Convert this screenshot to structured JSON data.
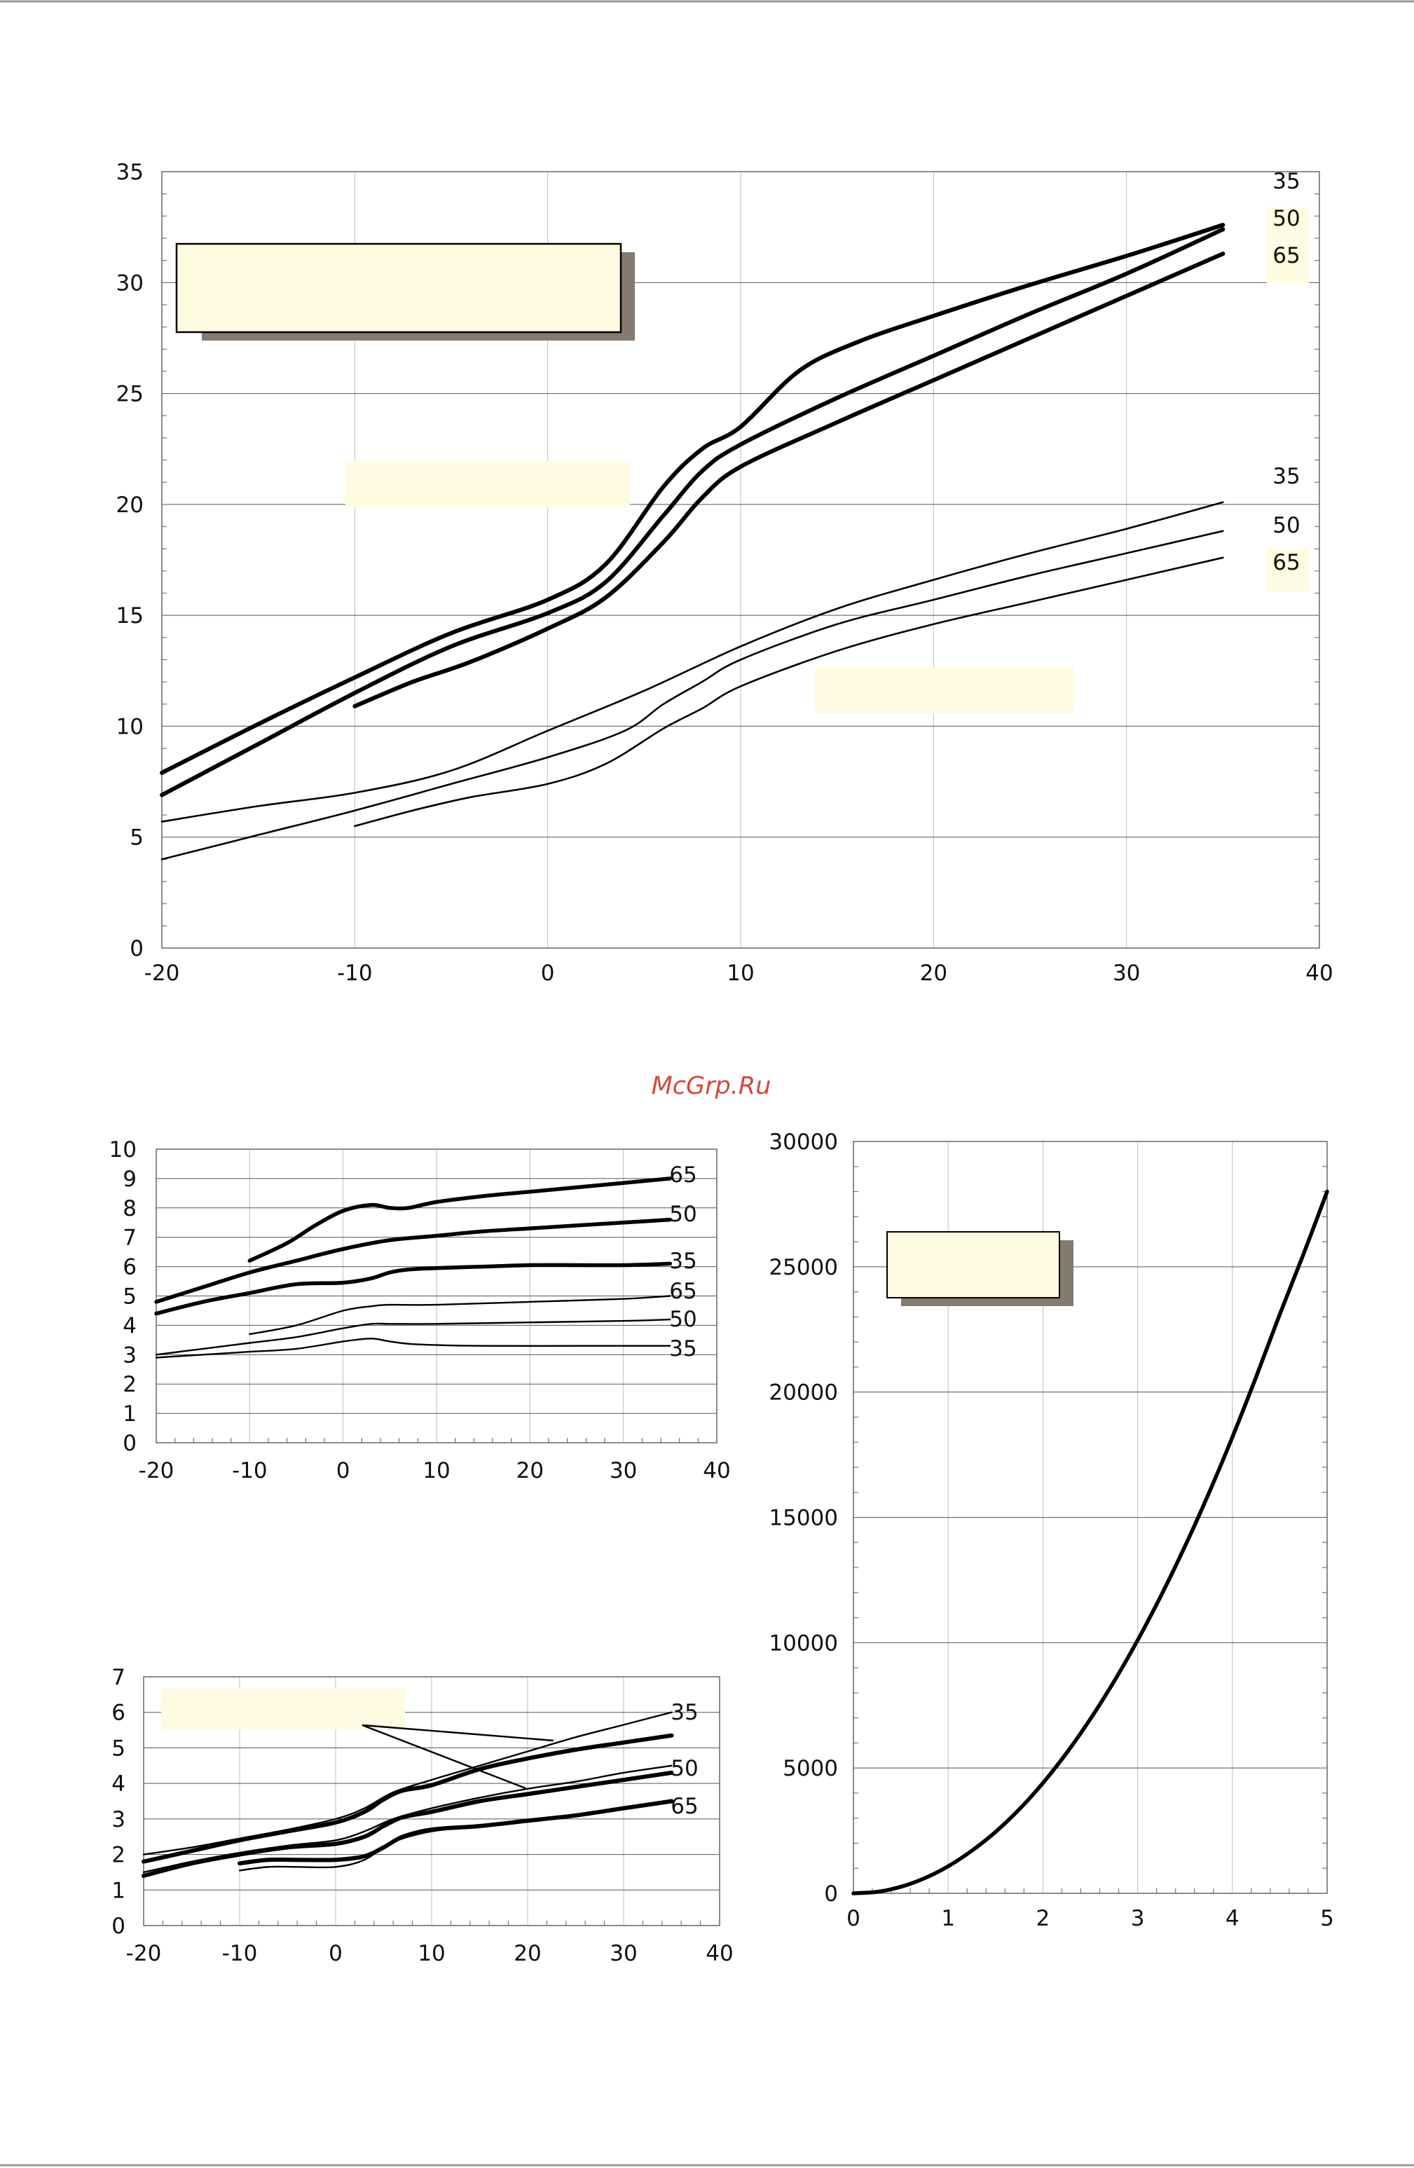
{
  "watermark": "McGrp.Ru",
  "colors": {
    "line": "#000000",
    "highlight": "#fffbe0",
    "shadow": "#847a6e",
    "watermark": "#d24a3a"
  },
  "chart_data": [
    {
      "type": "line",
      "title": "",
      "xlim": [
        -20,
        40
      ],
      "ylim": [
        0,
        35
      ],
      "x_ticks": [
        "-20",
        "-10",
        "0",
        "10",
        "20",
        "30",
        "40"
      ],
      "y_ticks": [
        "0",
        "5",
        "10",
        "15",
        "20",
        "25",
        "30",
        "35"
      ],
      "grid": true,
      "series": [
        {
          "name": "35",
          "weight": "thick",
          "x": [
            -20,
            -15,
            -10,
            -5,
            0,
            3,
            6,
            8,
            10,
            13,
            16,
            20,
            25,
            30,
            35
          ],
          "y": [
            7.9,
            10.1,
            12.2,
            14.2,
            15.7,
            17.3,
            20.8,
            22.5,
            23.5,
            26.0,
            27.3,
            28.5,
            29.9,
            31.2,
            32.6
          ]
        },
        {
          "name": "50",
          "weight": "thick",
          "x": [
            -20,
            -15,
            -10,
            -5,
            0,
            3,
            6,
            8,
            10,
            15,
            20,
            25,
            30,
            35
          ],
          "y": [
            6.9,
            9.2,
            11.5,
            13.6,
            15.1,
            16.5,
            19.5,
            21.5,
            22.7,
            24.8,
            26.7,
            28.6,
            30.4,
            32.4
          ]
        },
        {
          "name": "65",
          "weight": "thick",
          "x": [
            -10,
            -7,
            -4,
            0,
            3,
            6,
            8,
            10,
            15,
            20,
            25,
            30,
            35
          ],
          "y": [
            10.9,
            12.0,
            12.9,
            14.4,
            15.8,
            18.3,
            20.3,
            21.7,
            23.7,
            25.6,
            27.5,
            29.4,
            31.3
          ]
        },
        {
          "name": "35",
          "weight": "thin",
          "x": [
            -20,
            -15,
            -10,
            -5,
            0,
            5,
            10,
            15,
            20,
            25,
            30,
            35
          ],
          "y": [
            5.7,
            6.4,
            7.0,
            8.0,
            9.8,
            11.6,
            13.6,
            15.3,
            16.6,
            17.8,
            18.9,
            20.1
          ]
        },
        {
          "name": "50",
          "weight": "thin",
          "x": [
            -20,
            -15,
            -10,
            -5,
            0,
            4,
            6,
            8,
            10,
            15,
            20,
            25,
            30,
            35
          ],
          "y": [
            4.0,
            5.1,
            6.2,
            7.4,
            8.6,
            9.8,
            11.0,
            12.0,
            13.0,
            14.6,
            15.7,
            16.8,
            17.8,
            18.8
          ]
        },
        {
          "name": "65",
          "weight": "thin",
          "x": [
            -10,
            -7,
            -4,
            0,
            3,
            6,
            8,
            10,
            15,
            20,
            25,
            30,
            35
          ],
          "y": [
            5.5,
            6.2,
            6.8,
            7.4,
            8.3,
            9.9,
            10.8,
            11.8,
            13.4,
            14.6,
            15.6,
            16.6,
            17.6
          ]
        }
      ],
      "line_labels": [
        "35",
        "50",
        "65",
        "35",
        "50",
        "65"
      ]
    },
    {
      "type": "line",
      "title": "",
      "xlim": [
        -20,
        40
      ],
      "ylim": [
        0,
        10
      ],
      "x_ticks": [
        "-20",
        "-10",
        "0",
        "10",
        "20",
        "30",
        "40"
      ],
      "y_ticks": [
        "0",
        "1",
        "2",
        "3",
        "4",
        "5",
        "6",
        "7",
        "8",
        "9",
        "10"
      ],
      "grid": true,
      "series": [
        {
          "name": "65",
          "weight": "thick",
          "x": [
            -10,
            -6,
            -3,
            0,
            3,
            5,
            7,
            10,
            15,
            20,
            25,
            30,
            35
          ],
          "y": [
            6.2,
            6.8,
            7.4,
            7.9,
            8.1,
            8.0,
            8.0,
            8.2,
            8.4,
            8.55,
            8.7,
            8.85,
            9.0
          ]
        },
        {
          "name": "50",
          "weight": "thick",
          "x": [
            -20,
            -15,
            -10,
            -5,
            0,
            5,
            10,
            15,
            20,
            25,
            30,
            35
          ],
          "y": [
            4.8,
            5.3,
            5.8,
            6.2,
            6.6,
            6.9,
            7.05,
            7.2,
            7.3,
            7.4,
            7.5,
            7.6
          ]
        },
        {
          "name": "35",
          "weight": "thick",
          "x": [
            -20,
            -15,
            -10,
            -5,
            0,
            3,
            5,
            7,
            10,
            15,
            20,
            25,
            30,
            35
          ],
          "y": [
            4.4,
            4.8,
            5.1,
            5.4,
            5.45,
            5.6,
            5.8,
            5.9,
            5.95,
            6.0,
            6.05,
            6.05,
            6.05,
            6.1
          ]
        },
        {
          "name": "65",
          "weight": "thin",
          "x": [
            -10,
            -5,
            0,
            3,
            5,
            10,
            20,
            30,
            35
          ],
          "y": [
            3.7,
            4.0,
            4.5,
            4.65,
            4.7,
            4.7,
            4.8,
            4.9,
            5.0
          ]
        },
        {
          "name": "50",
          "weight": "thin",
          "x": [
            -20,
            -15,
            -10,
            -5,
            0,
            3,
            5,
            10,
            20,
            30,
            35
          ],
          "y": [
            3.0,
            3.2,
            3.4,
            3.6,
            3.9,
            4.05,
            4.05,
            4.05,
            4.1,
            4.15,
            4.2
          ]
        },
        {
          "name": "35",
          "weight": "thin",
          "x": [
            -20,
            -15,
            -10,
            -5,
            0,
            3,
            5,
            8,
            15,
            25,
            35
          ],
          "y": [
            2.9,
            3.0,
            3.1,
            3.2,
            3.45,
            3.55,
            3.45,
            3.35,
            3.3,
            3.3,
            3.3
          ]
        }
      ],
      "line_labels": [
        "65",
        "50",
        "35",
        "65",
        "50",
        "35"
      ]
    },
    {
      "type": "line",
      "title": "",
      "xlim": [
        -20,
        40
      ],
      "ylim": [
        0,
        7
      ],
      "x_ticks": [
        "-20",
        "-10",
        "0",
        "10",
        "20",
        "30",
        "40"
      ],
      "y_ticks": [
        "0",
        "1",
        "2",
        "3",
        "4",
        "5",
        "6",
        "7"
      ],
      "grid": true,
      "series": [
        {
          "name": "35",
          "weight": "thick",
          "x": [
            -20,
            -15,
            -10,
            -5,
            0,
            3,
            5,
            7,
            10,
            15,
            20,
            25,
            30,
            35
          ],
          "y": [
            1.8,
            2.1,
            2.4,
            2.65,
            2.9,
            3.2,
            3.55,
            3.8,
            3.95,
            4.4,
            4.7,
            4.95,
            5.15,
            5.35
          ]
        },
        {
          "name": "50",
          "weight": "thick",
          "x": [
            -20,
            -15,
            -10,
            -5,
            0,
            3,
            5,
            7,
            10,
            15,
            20,
            25,
            30,
            35
          ],
          "y": [
            1.4,
            1.75,
            2.0,
            2.2,
            2.3,
            2.5,
            2.8,
            3.05,
            3.2,
            3.5,
            3.7,
            3.9,
            4.1,
            4.3
          ]
        },
        {
          "name": "65",
          "weight": "thick",
          "x": [
            -10,
            -7,
            -4,
            0,
            3,
            5,
            7,
            10,
            15,
            20,
            25,
            30,
            35
          ],
          "y": [
            1.75,
            1.85,
            1.85,
            1.85,
            1.95,
            2.2,
            2.5,
            2.7,
            2.8,
            2.95,
            3.1,
            3.3,
            3.5
          ]
        },
        {
          "name": "35",
          "weight": "thin",
          "x": [
            -20,
            -15,
            -10,
            -5,
            0,
            3,
            6,
            10,
            15,
            20,
            25,
            30,
            35
          ],
          "y": [
            2.0,
            2.2,
            2.45,
            2.7,
            3.0,
            3.3,
            3.75,
            4.1,
            4.5,
            4.9,
            5.3,
            5.65,
            6.0
          ]
        },
        {
          "name": "50",
          "weight": "thin",
          "x": [
            -20,
            -15,
            -10,
            -5,
            0,
            3,
            6,
            10,
            15,
            20,
            25,
            30,
            35
          ],
          "y": [
            1.5,
            1.8,
            2.05,
            2.25,
            2.4,
            2.65,
            3.0,
            3.3,
            3.6,
            3.85,
            4.05,
            4.3,
            4.5
          ]
        },
        {
          "name": "65",
          "weight": "thin",
          "x": [
            -10,
            -7,
            -4,
            0,
            3,
            6,
            10,
            15,
            20,
            25,
            30,
            35
          ],
          "y": [
            1.55,
            1.65,
            1.65,
            1.65,
            1.85,
            2.35,
            2.65,
            2.8,
            2.95,
            3.1,
            3.3,
            3.5
          ]
        }
      ],
      "line_labels": [
        "35",
        "50",
        "65"
      ]
    },
    {
      "type": "line",
      "title": "",
      "xlim": [
        0,
        5
      ],
      "ylim": [
        0,
        30000
      ],
      "x_ticks": [
        "0",
        "1",
        "2",
        "3",
        "4",
        "5"
      ],
      "y_ticks": [
        "0",
        "5000",
        "10000",
        "15000",
        "20000",
        "25000",
        "30000"
      ],
      "grid": true,
      "series": [
        {
          "name": "",
          "weight": "thick",
          "x": [
            0,
            0.25,
            0.5,
            0.75,
            1,
            1.25,
            1.5,
            1.75,
            2,
            2.25,
            2.5,
            2.75,
            3,
            3.25,
            3.5,
            3.75,
            4,
            4.25,
            4.5,
            4.75,
            5
          ],
          "y": [
            0,
            60,
            260,
            600,
            1080,
            1700,
            2450,
            3350,
            4400,
            5600,
            6950,
            8450,
            10100,
            11900,
            13850,
            15950,
            18200,
            20600,
            23100,
            25500,
            28000
          ]
        }
      ]
    }
  ]
}
